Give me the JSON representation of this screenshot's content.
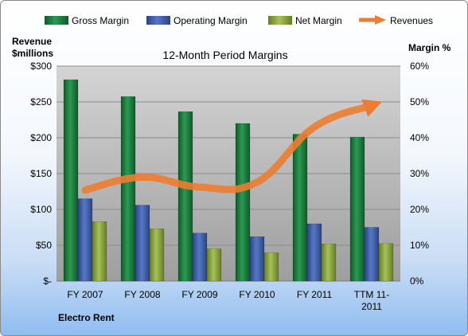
{
  "chart_data": {
    "type": "bar",
    "title": "12-Month Period Margins",
    "company": "Electro Rent",
    "ylabel_left": [
      "Revenue",
      "$millions"
    ],
    "ylabel_right": "Margin %",
    "categories": [
      [
        "FY 2007"
      ],
      [
        "FY 2008"
      ],
      [
        "FY 2009"
      ],
      [
        "FY 2010"
      ],
      [
        "FY 2011"
      ],
      [
        "TTM 11-",
        "2011"
      ]
    ],
    "ylim_left": [
      0,
      300
    ],
    "yticks_left": [
      "$-",
      "$50",
      "$100",
      "$150",
      "$200",
      "$250",
      "$300"
    ],
    "yticks_left_values": [
      0,
      50,
      100,
      150,
      200,
      250,
      300
    ],
    "ylim_right": [
      0,
      60
    ],
    "yticks_right": [
      "0%",
      "10%",
      "20%",
      "30%",
      "40%",
      "50%",
      "60%"
    ],
    "grid": true,
    "legend_position": "top",
    "series": [
      {
        "name": "Gross Margin",
        "axis": "right",
        "kind": "bar",
        "color": "#1d7a3d",
        "values": [
          56.2,
          51.5,
          47.3,
          44.0,
          41.0,
          40.2
        ]
      },
      {
        "name": "Operating Margin",
        "axis": "right",
        "kind": "bar",
        "color": "#3b5aa6",
        "values": [
          23.0,
          21.2,
          13.4,
          12.4,
          16.0,
          15.0
        ]
      },
      {
        "name": "Net Margin",
        "axis": "right",
        "kind": "bar",
        "color": "#8aa63a",
        "values": [
          16.6,
          14.6,
          9.0,
          7.9,
          10.4,
          10.5
        ]
      },
      {
        "name": "Revenues",
        "axis": "left",
        "kind": "line",
        "color": "#ed7d31",
        "values": [
          127,
          145,
          131,
          138,
          215,
          245
        ]
      }
    ]
  }
}
